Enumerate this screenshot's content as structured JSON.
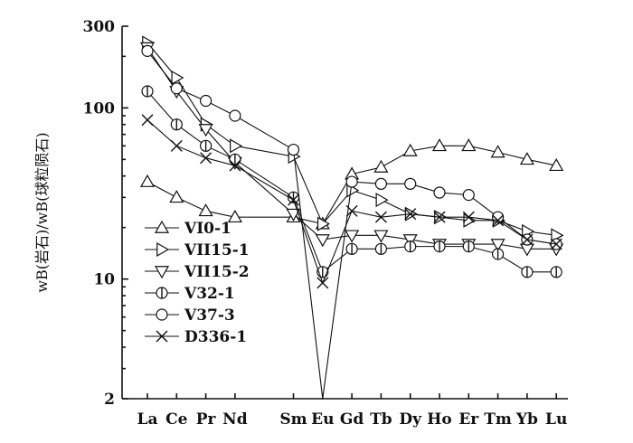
{
  "chart_data": {
    "type": "line",
    "ylabel": "wB(岩石)/wB(球粒陨石)",
    "y_scale": "log",
    "ylim": [
      2,
      300
    ],
    "y_ticks": [
      2,
      10,
      100,
      300
    ],
    "categories": [
      "La",
      "Ce",
      "Pr",
      "Nd",
      "Sm",
      "Eu",
      "Gd",
      "Tb",
      "Dy",
      "Ho",
      "Er",
      "Tm",
      "Yb",
      "Lu"
    ],
    "category_positions": [
      0,
      1,
      2,
      3,
      5,
      6,
      7,
      8,
      9,
      10,
      11,
      12,
      13,
      14
    ],
    "legend_position": "left",
    "series": [
      {
        "name": "VI0-1",
        "marker": "triangle-up",
        "values": [
          37,
          30,
          25,
          23,
          23,
          21,
          41,
          45,
          56,
          60,
          60,
          55,
          50,
          46
        ]
      },
      {
        "name": "VII15-1",
        "marker": "triangle-right",
        "values": [
          240,
          150,
          80,
          60,
          52,
          21,
          33,
          29,
          24,
          23,
          22,
          22,
          19,
          18
        ]
      },
      {
        "name": "VII15-2",
        "marker": "triangle-down",
        "values": [
          225,
          125,
          75,
          48,
          24,
          17,
          18,
          18,
          17,
          16,
          16,
          16,
          15,
          15
        ]
      },
      {
        "name": "V32-1",
        "marker": "circle-vline",
        "values": [
          125,
          80,
          60,
          50,
          30,
          11,
          15,
          15,
          15.5,
          15.5,
          15.5,
          14,
          11,
          11
        ]
      },
      {
        "name": "V37-3",
        "marker": "circle",
        "values": [
          215,
          130,
          110,
          90,
          57,
          2,
          37,
          36,
          36,
          32,
          31,
          23,
          17,
          16
        ]
      },
      {
        "name": "D336-1",
        "marker": "x",
        "values": [
          85,
          60,
          51,
          46,
          29,
          9.5,
          25,
          23,
          24,
          23,
          23,
          22,
          17,
          16
        ]
      }
    ]
  }
}
